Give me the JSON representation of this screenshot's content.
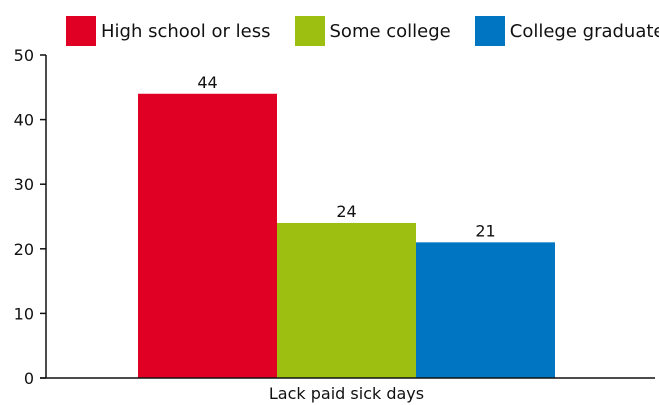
{
  "chart_data": {
    "type": "bar",
    "categories": [
      "Lack paid sick days"
    ],
    "series": [
      {
        "name": "High school or less",
        "values": [
          44
        ],
        "color": "#e00024"
      },
      {
        "name": "Some college",
        "values": [
          24
        ],
        "color": "#9dbf12"
      },
      {
        "name": "College graduate",
        "values": [
          21
        ],
        "color": "#0076c2"
      }
    ],
    "ylim": [
      0,
      50
    ],
    "yticks": [
      0,
      10,
      20,
      30,
      40,
      50
    ],
    "show_data_labels": true,
    "legend_position": "top",
    "grid": false
  }
}
